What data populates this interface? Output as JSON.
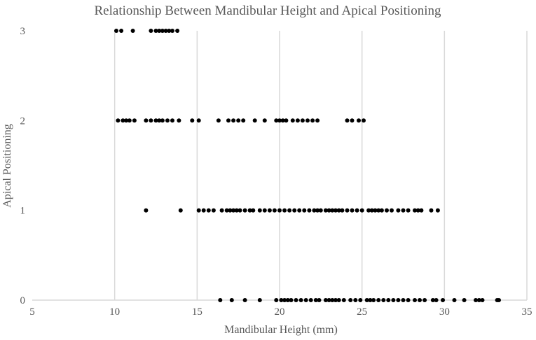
{
  "chart_data": {
    "type": "scatter",
    "title": "Relationship Between Mandibular Height and Apical Positioning",
    "xlabel": "Mandibular Height (mm)",
    "ylabel": "Apical Positioning",
    "xlim": [
      5,
      35
    ],
    "ylim": [
      0,
      3
    ],
    "x_ticks": [
      "5",
      "10",
      "15",
      "20",
      "25",
      "30",
      "35"
    ],
    "y_ticks": [
      "0",
      "1",
      "2",
      "3"
    ],
    "grid": {
      "vertical": true,
      "horizontal": false
    },
    "legend": "none",
    "colors": {
      "points": "#000000",
      "grid": "#d9d9d9",
      "text": "#595959"
    },
    "series": [
      {
        "points": [
          {
            "x": 10.1,
            "y": 3
          },
          {
            "x": 10.4,
            "y": 3
          },
          {
            "x": 11.1,
            "y": 3
          },
          {
            "x": 12.2,
            "y": 3
          },
          {
            "x": 12.5,
            "y": 3
          },
          {
            "x": 12.7,
            "y": 3
          },
          {
            "x": 12.9,
            "y": 3
          },
          {
            "x": 13.1,
            "y": 3
          },
          {
            "x": 13.3,
            "y": 3
          },
          {
            "x": 13.5,
            "y": 3
          },
          {
            "x": 13.8,
            "y": 3
          },
          {
            "x": 10.2,
            "y": 2
          },
          {
            "x": 10.5,
            "y": 2
          },
          {
            "x": 10.7,
            "y": 2
          },
          {
            "x": 10.9,
            "y": 2
          },
          {
            "x": 11.2,
            "y": 2
          },
          {
            "x": 11.9,
            "y": 2
          },
          {
            "x": 12.2,
            "y": 2
          },
          {
            "x": 12.5,
            "y": 2
          },
          {
            "x": 12.7,
            "y": 2
          },
          {
            "x": 12.9,
            "y": 2
          },
          {
            "x": 13.2,
            "y": 2
          },
          {
            "x": 13.5,
            "y": 2
          },
          {
            "x": 13.9,
            "y": 2
          },
          {
            "x": 14.7,
            "y": 2
          },
          {
            "x": 15.1,
            "y": 2
          },
          {
            "x": 16.3,
            "y": 2
          },
          {
            "x": 16.9,
            "y": 2
          },
          {
            "x": 17.2,
            "y": 2
          },
          {
            "x": 17.5,
            "y": 2
          },
          {
            "x": 17.8,
            "y": 2
          },
          {
            "x": 18.5,
            "y": 2
          },
          {
            "x": 19.1,
            "y": 2
          },
          {
            "x": 19.8,
            "y": 2
          },
          {
            "x": 20.0,
            "y": 2
          },
          {
            "x": 20.2,
            "y": 2
          },
          {
            "x": 20.4,
            "y": 2
          },
          {
            "x": 20.8,
            "y": 2
          },
          {
            "x": 21.1,
            "y": 2
          },
          {
            "x": 21.4,
            "y": 2
          },
          {
            "x": 21.7,
            "y": 2
          },
          {
            "x": 22.0,
            "y": 2
          },
          {
            "x": 22.3,
            "y": 2
          },
          {
            "x": 24.1,
            "y": 2
          },
          {
            "x": 24.4,
            "y": 2
          },
          {
            "x": 24.8,
            "y": 2
          },
          {
            "x": 25.1,
            "y": 2
          },
          {
            "x": 11.9,
            "y": 1
          },
          {
            "x": 14.0,
            "y": 1
          },
          {
            "x": 15.1,
            "y": 1
          },
          {
            "x": 15.4,
            "y": 1
          },
          {
            "x": 15.7,
            "y": 1
          },
          {
            "x": 16.0,
            "y": 1
          },
          {
            "x": 16.5,
            "y": 1
          },
          {
            "x": 16.8,
            "y": 1
          },
          {
            "x": 17.0,
            "y": 1
          },
          {
            "x": 17.2,
            "y": 1
          },
          {
            "x": 17.4,
            "y": 1
          },
          {
            "x": 17.6,
            "y": 1
          },
          {
            "x": 17.9,
            "y": 1
          },
          {
            "x": 18.2,
            "y": 1
          },
          {
            "x": 18.4,
            "y": 1
          },
          {
            "x": 18.8,
            "y": 1
          },
          {
            "x": 19.1,
            "y": 1
          },
          {
            "x": 19.4,
            "y": 1
          },
          {
            "x": 19.7,
            "y": 1
          },
          {
            "x": 20.0,
            "y": 1
          },
          {
            "x": 20.3,
            "y": 1
          },
          {
            "x": 20.6,
            "y": 1
          },
          {
            "x": 20.9,
            "y": 1
          },
          {
            "x": 21.2,
            "y": 1
          },
          {
            "x": 21.5,
            "y": 1
          },
          {
            "x": 21.8,
            "y": 1
          },
          {
            "x": 22.1,
            "y": 1
          },
          {
            "x": 22.3,
            "y": 1
          },
          {
            "x": 22.5,
            "y": 1
          },
          {
            "x": 22.8,
            "y": 1
          },
          {
            "x": 23.0,
            "y": 1
          },
          {
            "x": 23.2,
            "y": 1
          },
          {
            "x": 23.4,
            "y": 1
          },
          {
            "x": 23.6,
            "y": 1
          },
          {
            "x": 23.8,
            "y": 1
          },
          {
            "x": 24.1,
            "y": 1
          },
          {
            "x": 24.4,
            "y": 1
          },
          {
            "x": 24.7,
            "y": 1
          },
          {
            "x": 25.0,
            "y": 1
          },
          {
            "x": 25.4,
            "y": 1
          },
          {
            "x": 25.6,
            "y": 1
          },
          {
            "x": 25.8,
            "y": 1
          },
          {
            "x": 26.0,
            "y": 1
          },
          {
            "x": 26.2,
            "y": 1
          },
          {
            "x": 26.5,
            "y": 1
          },
          {
            "x": 26.8,
            "y": 1
          },
          {
            "x": 27.2,
            "y": 1
          },
          {
            "x": 27.5,
            "y": 1
          },
          {
            "x": 27.8,
            "y": 1
          },
          {
            "x": 28.2,
            "y": 1
          },
          {
            "x": 28.4,
            "y": 1
          },
          {
            "x": 28.6,
            "y": 1
          },
          {
            "x": 29.2,
            "y": 1
          },
          {
            "x": 29.6,
            "y": 1
          },
          {
            "x": 16.4,
            "y": 0
          },
          {
            "x": 17.1,
            "y": 0
          },
          {
            "x": 17.9,
            "y": 0
          },
          {
            "x": 18.8,
            "y": 0
          },
          {
            "x": 19.8,
            "y": 0
          },
          {
            "x": 20.1,
            "y": 0
          },
          {
            "x": 20.3,
            "y": 0
          },
          {
            "x": 20.5,
            "y": 0
          },
          {
            "x": 20.7,
            "y": 0
          },
          {
            "x": 21.0,
            "y": 0
          },
          {
            "x": 21.3,
            "y": 0
          },
          {
            "x": 21.6,
            "y": 0
          },
          {
            "x": 21.9,
            "y": 0
          },
          {
            "x": 22.2,
            "y": 0
          },
          {
            "x": 22.4,
            "y": 0
          },
          {
            "x": 22.8,
            "y": 0
          },
          {
            "x": 23.0,
            "y": 0
          },
          {
            "x": 23.2,
            "y": 0
          },
          {
            "x": 23.4,
            "y": 0
          },
          {
            "x": 23.6,
            "y": 0
          },
          {
            "x": 23.9,
            "y": 0
          },
          {
            "x": 24.3,
            "y": 0
          },
          {
            "x": 24.6,
            "y": 0
          },
          {
            "x": 24.9,
            "y": 0
          },
          {
            "x": 25.3,
            "y": 0
          },
          {
            "x": 25.5,
            "y": 0
          },
          {
            "x": 25.7,
            "y": 0
          },
          {
            "x": 26.0,
            "y": 0
          },
          {
            "x": 26.3,
            "y": 0
          },
          {
            "x": 26.6,
            "y": 0
          },
          {
            "x": 26.9,
            "y": 0
          },
          {
            "x": 27.2,
            "y": 0
          },
          {
            "x": 27.5,
            "y": 0
          },
          {
            "x": 27.8,
            "y": 0
          },
          {
            "x": 28.2,
            "y": 0
          },
          {
            "x": 28.5,
            "y": 0
          },
          {
            "x": 28.8,
            "y": 0
          },
          {
            "x": 29.3,
            "y": 0
          },
          {
            "x": 29.5,
            "y": 0
          },
          {
            "x": 29.9,
            "y": 0
          },
          {
            "x": 30.6,
            "y": 0
          },
          {
            "x": 31.2,
            "y": 0
          },
          {
            "x": 31.9,
            "y": 0
          },
          {
            "x": 32.1,
            "y": 0
          },
          {
            "x": 32.3,
            "y": 0
          },
          {
            "x": 33.2,
            "y": 0
          },
          {
            "x": 33.3,
            "y": 0
          }
        ]
      }
    ]
  }
}
